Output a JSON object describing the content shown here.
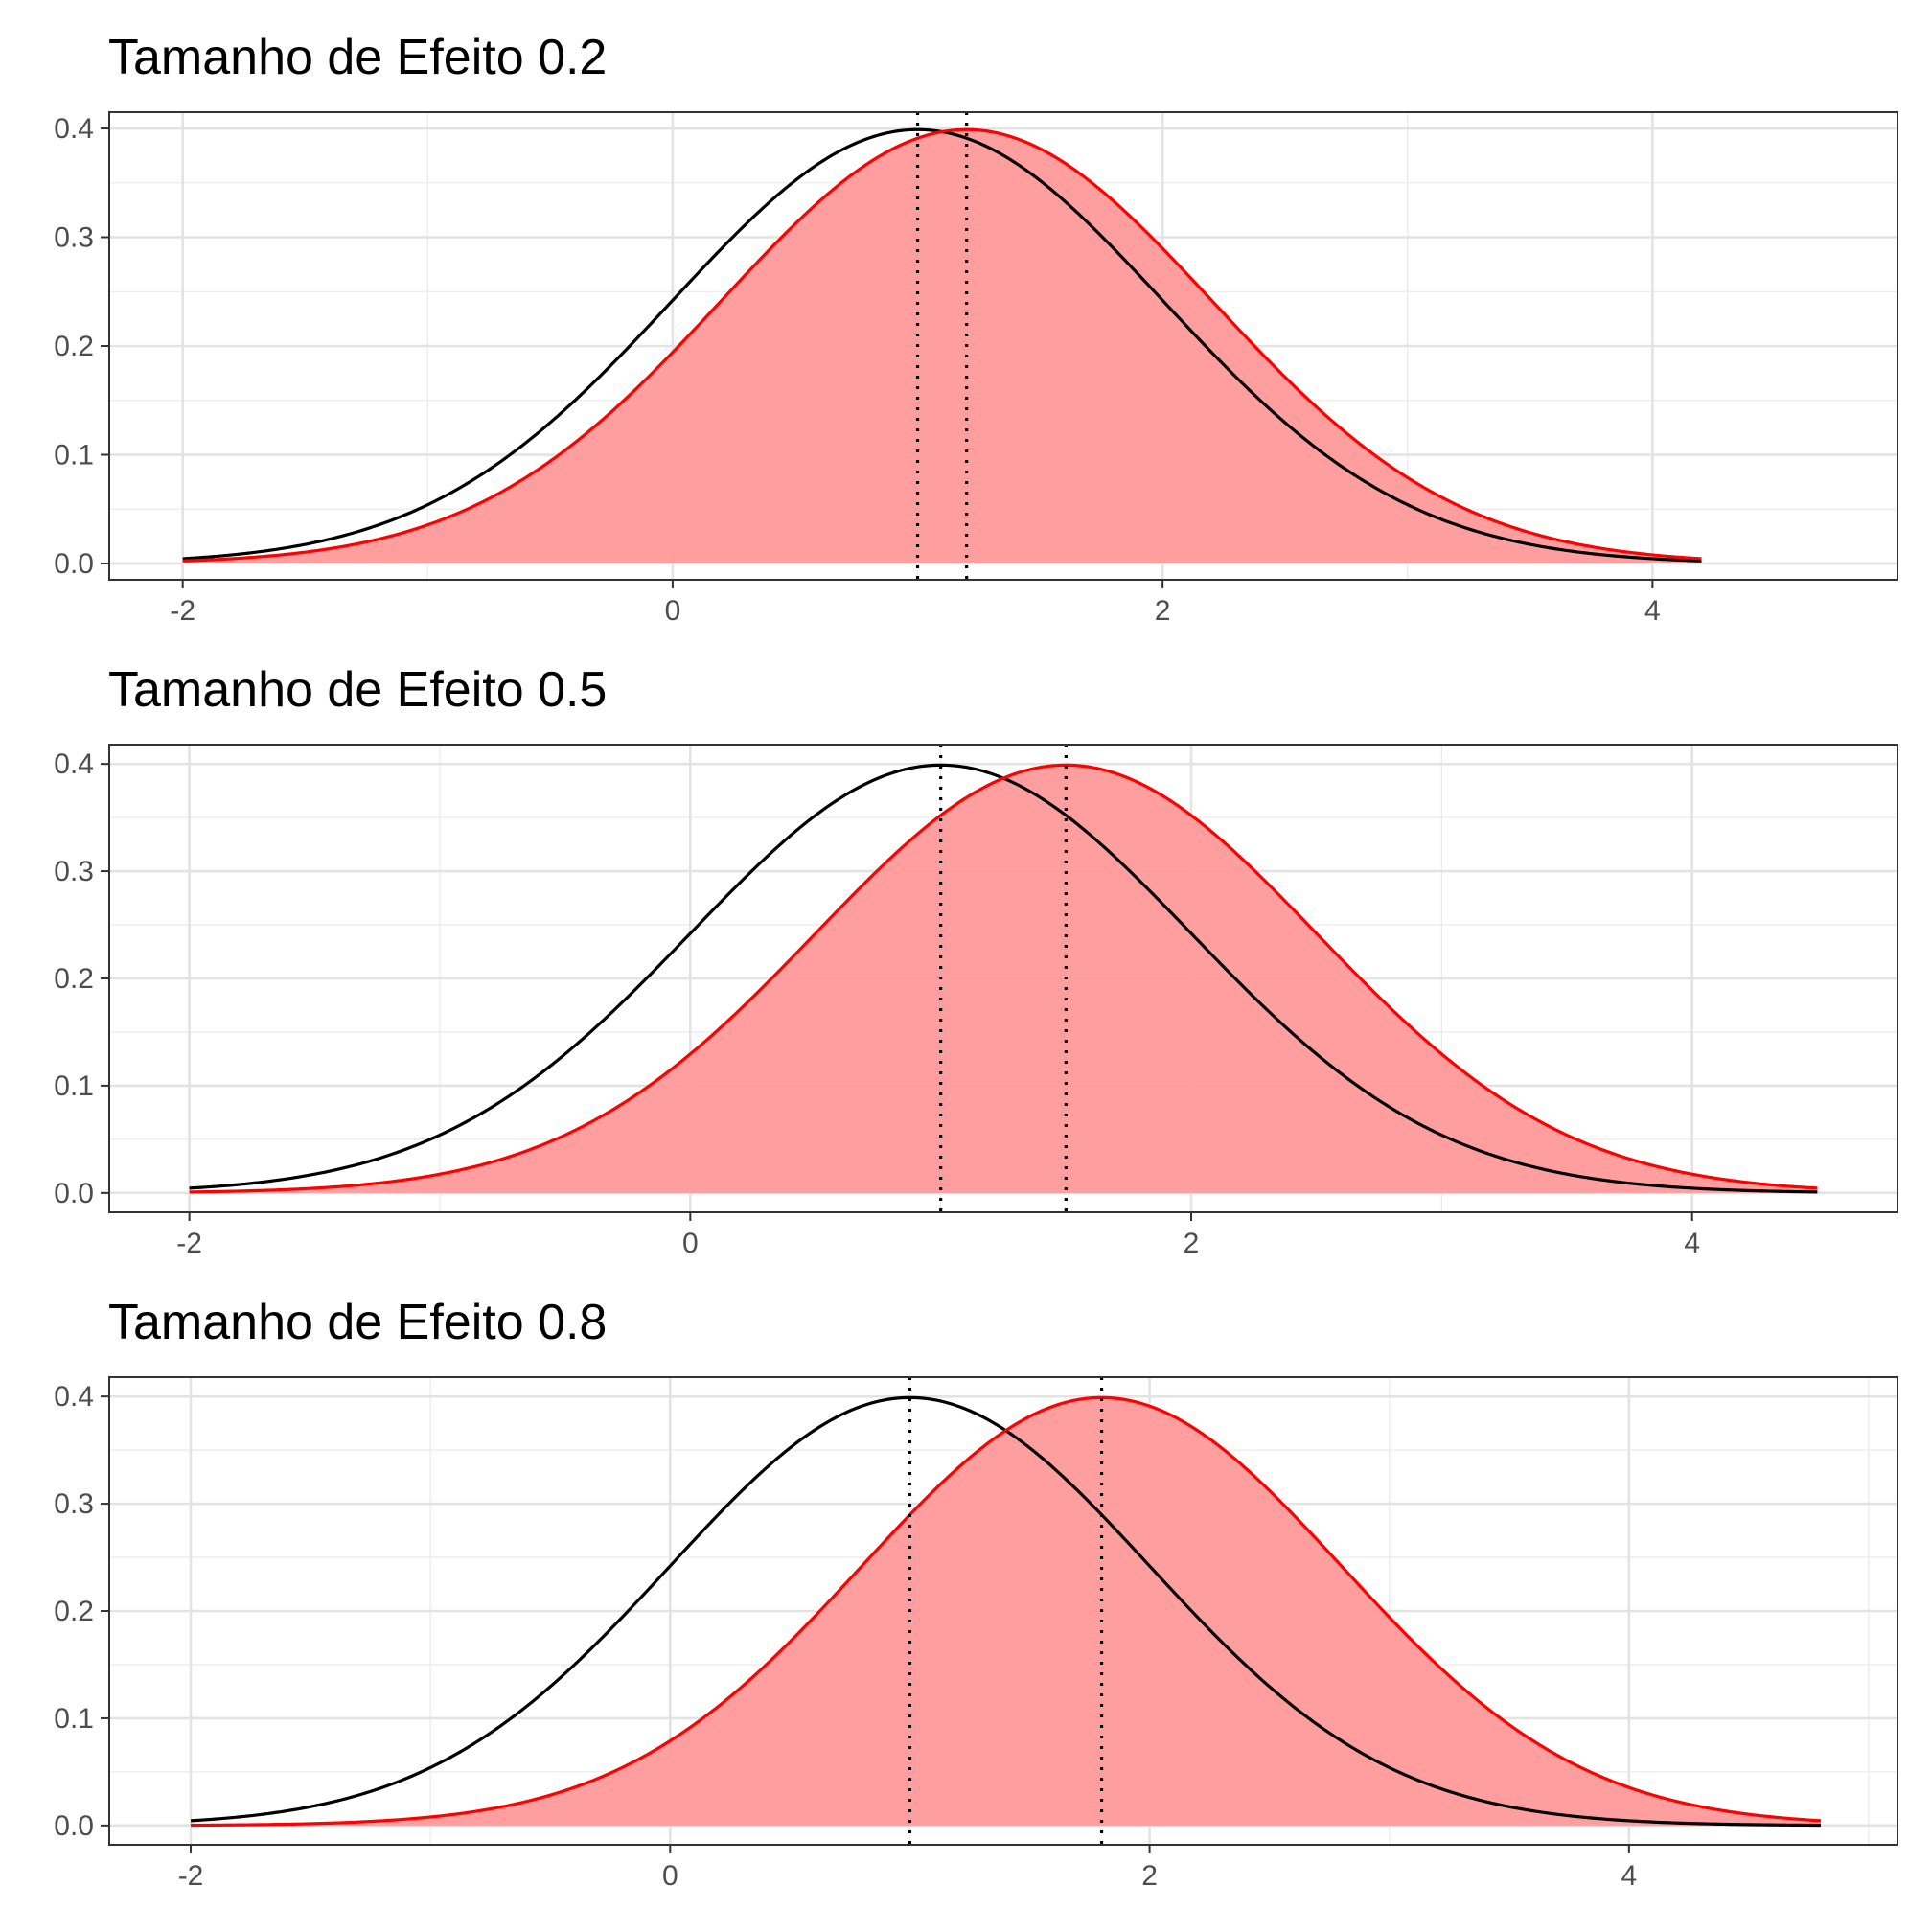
{
  "chart_data": [
    {
      "type": "area",
      "title": "Tamanho de Efeito 0.2",
      "xlabel": "",
      "ylabel": "",
      "xlim": [
        -2.3,
        5.0
      ],
      "ylim": [
        -0.015,
        0.415
      ],
      "xticks": [
        -2,
        0,
        2,
        4
      ],
      "yticks": [
        0.0,
        0.1,
        0.2,
        0.3,
        0.4
      ],
      "grid": true,
      "legend": "none",
      "series": [
        {
          "color": "#000000",
          "distribution": "normal",
          "mean": 1.0,
          "sd": 1.0,
          "x_range": [
            -2,
            4.2
          ]
        },
        {
          "color": "#ff0000",
          "distribution": "normal",
          "mean": 1.2,
          "sd": 1.0,
          "x_range": [
            -2,
            4.2
          ],
          "fill": "#ff9999"
        }
      ],
      "vlines": [
        1.0,
        1.2
      ]
    },
    {
      "type": "area",
      "title": "Tamanho de Efeito 0.5",
      "xlabel": "",
      "ylabel": "",
      "xlim": [
        -2.32,
        4.82
      ],
      "ylim": [
        -0.018,
        0.418
      ],
      "xticks": [
        -2,
        0,
        2,
        4
      ],
      "yticks": [
        0.0,
        0.1,
        0.2,
        0.3,
        0.4
      ],
      "grid": true,
      "legend": "none",
      "series": [
        {
          "color": "#000000",
          "distribution": "normal",
          "mean": 1.0,
          "sd": 1.0,
          "x_range": [
            -2,
            4.5
          ]
        },
        {
          "color": "#ff0000",
          "distribution": "normal",
          "mean": 1.5,
          "sd": 1.0,
          "x_range": [
            -2,
            4.5
          ],
          "fill": "#ff9999"
        }
      ],
      "vlines": [
        1.0,
        1.5
      ]
    },
    {
      "type": "area",
      "title": "Tamanho de Efeito 0.8",
      "xlabel": "",
      "ylabel": "",
      "xlim": [
        -2.34,
        5.12
      ],
      "ylim": [
        -0.018,
        0.418
      ],
      "xticks": [
        -2,
        0,
        2,
        4
      ],
      "yticks": [
        0.0,
        0.1,
        0.2,
        0.3,
        0.4
      ],
      "grid": true,
      "legend": "none",
      "series": [
        {
          "color": "#000000",
          "distribution": "normal",
          "mean": 1.0,
          "sd": 1.0,
          "x_range": [
            -2,
            4.8
          ]
        },
        {
          "color": "#ff0000",
          "distribution": "normal",
          "mean": 1.8,
          "sd": 1.0,
          "x_range": [
            -2,
            4.8
          ],
          "fill": "#ff9999"
        }
      ],
      "vlines": [
        1.0,
        1.8
      ]
    }
  ]
}
